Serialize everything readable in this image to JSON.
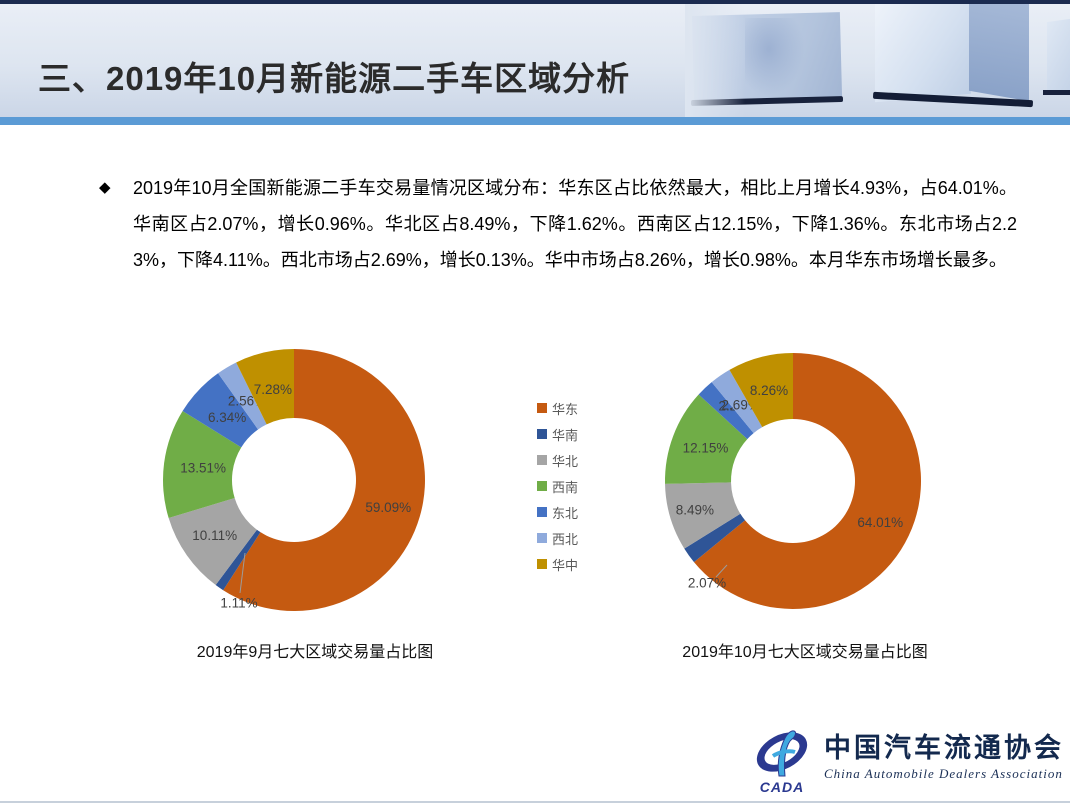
{
  "header": {
    "title": "三、2019年10月新能源二手车区域分析"
  },
  "summary": {
    "bullet": "◆",
    "text": "2019年10月全国新能源二手车交易量情况区域分布：华东区占比依然最大，相比上月增长4.93%，占64.01%。华南区占2.07%，增长0.96%。华北区占8.49%，下降1.62%。西南区占12.15%，下降1.36%。东北市场占2.23%，下降4.11%。西北市场占2.69%，增长0.13%。华中市场占8.26%，增长0.98%。本月华东市场增长最多。"
  },
  "chart_data": [
    {
      "type": "pie",
      "subtype": "donut",
      "title": "2019年9月七大区域交易量占比图",
      "categories": [
        "华东",
        "华南",
        "华北",
        "西南",
        "东北",
        "西北",
        "华中"
      ],
      "values": [
        59.09,
        1.11,
        10.11,
        13.51,
        6.34,
        2.56,
        7.28
      ],
      "unit": "%",
      "colors": [
        "#C55A11",
        "#2F5597",
        "#A5A5A5",
        "#70AD47",
        "#4472C4",
        "#8FAADC",
        "#BF9000"
      ],
      "start_angle_deg": 0,
      "direction": "clockwise",
      "data_labels": "percent, 2 decimals",
      "legend_position": "shared legend between the two donuts"
    },
    {
      "type": "pie",
      "subtype": "donut",
      "title": "2019年10月七大区域交易量占比图",
      "categories": [
        "华东",
        "华南",
        "华北",
        "西南",
        "东北",
        "西北",
        "华中"
      ],
      "values": [
        64.01,
        2.07,
        8.49,
        12.15,
        2.23,
        2.69,
        8.26
      ],
      "unit": "%",
      "colors": [
        "#C55A11",
        "#2F5597",
        "#A5A5A5",
        "#70AD47",
        "#4472C4",
        "#8FAADC",
        "#BF9000"
      ],
      "start_angle_deg": 0,
      "direction": "clockwise",
      "data_labels": "percent, 2 decimals",
      "legend_position": "shared legend between the two donuts"
    }
  ],
  "legend": {
    "items": [
      {
        "label": "华东",
        "color": "#C55A11"
      },
      {
        "label": "华南",
        "color": "#2F5597"
      },
      {
        "label": "华北",
        "color": "#A5A5A5"
      },
      {
        "label": "西南",
        "color": "#70AD47"
      },
      {
        "label": "东北",
        "color": "#4472C4"
      },
      {
        "label": "西北",
        "color": "#8FAADC"
      },
      {
        "label": "华中",
        "color": "#BF9000"
      }
    ]
  },
  "footer": {
    "logo_acronym": "CADA",
    "org_cn": "中国汽车流通协会",
    "org_en": "China Automobile Dealers Association"
  },
  "colors": {
    "top_bar": "#1B2B50",
    "accent_strip": "#5B9BD5",
    "label_text": "#404040",
    "legend_text": "#595959",
    "logo_navy": "#2B3990",
    "logo_light_blue": "#3FA9E0"
  }
}
